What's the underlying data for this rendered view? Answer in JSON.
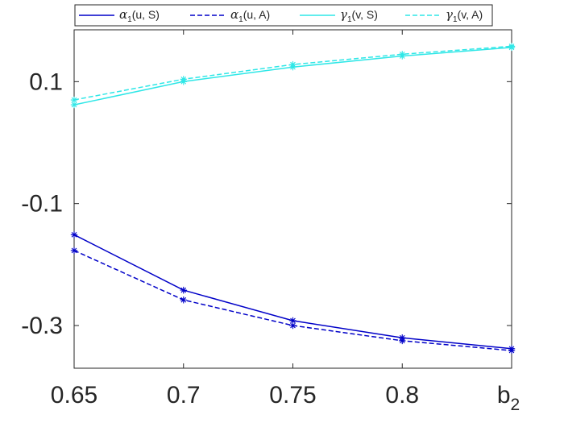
{
  "chart_data": {
    "type": "line",
    "x": [
      0.65,
      0.7,
      0.75,
      0.8,
      0.85
    ],
    "xlim": [
      0.65,
      0.85
    ],
    "ylim": [
      -0.37,
      0.185
    ],
    "x_tick_labels": [
      "0.65",
      "0.7",
      "0.75",
      "0.8",
      "b2"
    ],
    "x_tick_values": [
      0.65,
      0.7,
      0.75,
      0.8,
      0.85
    ],
    "y_tick_labels": [
      "-0.3",
      "-0.1",
      "0.1"
    ],
    "y_tick_values": [
      -0.3,
      -0.1,
      0.1
    ],
    "grid": false,
    "legend_position": "top",
    "series": [
      {
        "name": "α1(u, S)",
        "symbol": "α",
        "sub": "1",
        "args": "(u, S)",
        "color": "#0000c8",
        "dash": "solid",
        "values": [
          -0.151,
          -0.242,
          -0.292,
          -0.32,
          -0.338
        ]
      },
      {
        "name": "α1(u, A)",
        "symbol": "α",
        "sub": "1",
        "args": "(u, A)",
        "color": "#0000c8",
        "dash": "dashed",
        "values": [
          -0.177,
          -0.258,
          -0.3,
          -0.325,
          -0.341
        ]
      },
      {
        "name": "γ1(v, S)",
        "symbol": "γ",
        "sub": "1",
        "args": "(v, S)",
        "color": "#2fe7e7",
        "dash": "solid",
        "values": [
          0.062,
          0.1,
          0.124,
          0.142,
          0.156
        ]
      },
      {
        "name": "γ1(v, A)",
        "symbol": "γ",
        "sub": "1",
        "args": "(v, A)",
        "color": "#2fe7e7",
        "dash": "dashed",
        "values": [
          0.07,
          0.104,
          0.128,
          0.145,
          0.158
        ]
      }
    ]
  }
}
